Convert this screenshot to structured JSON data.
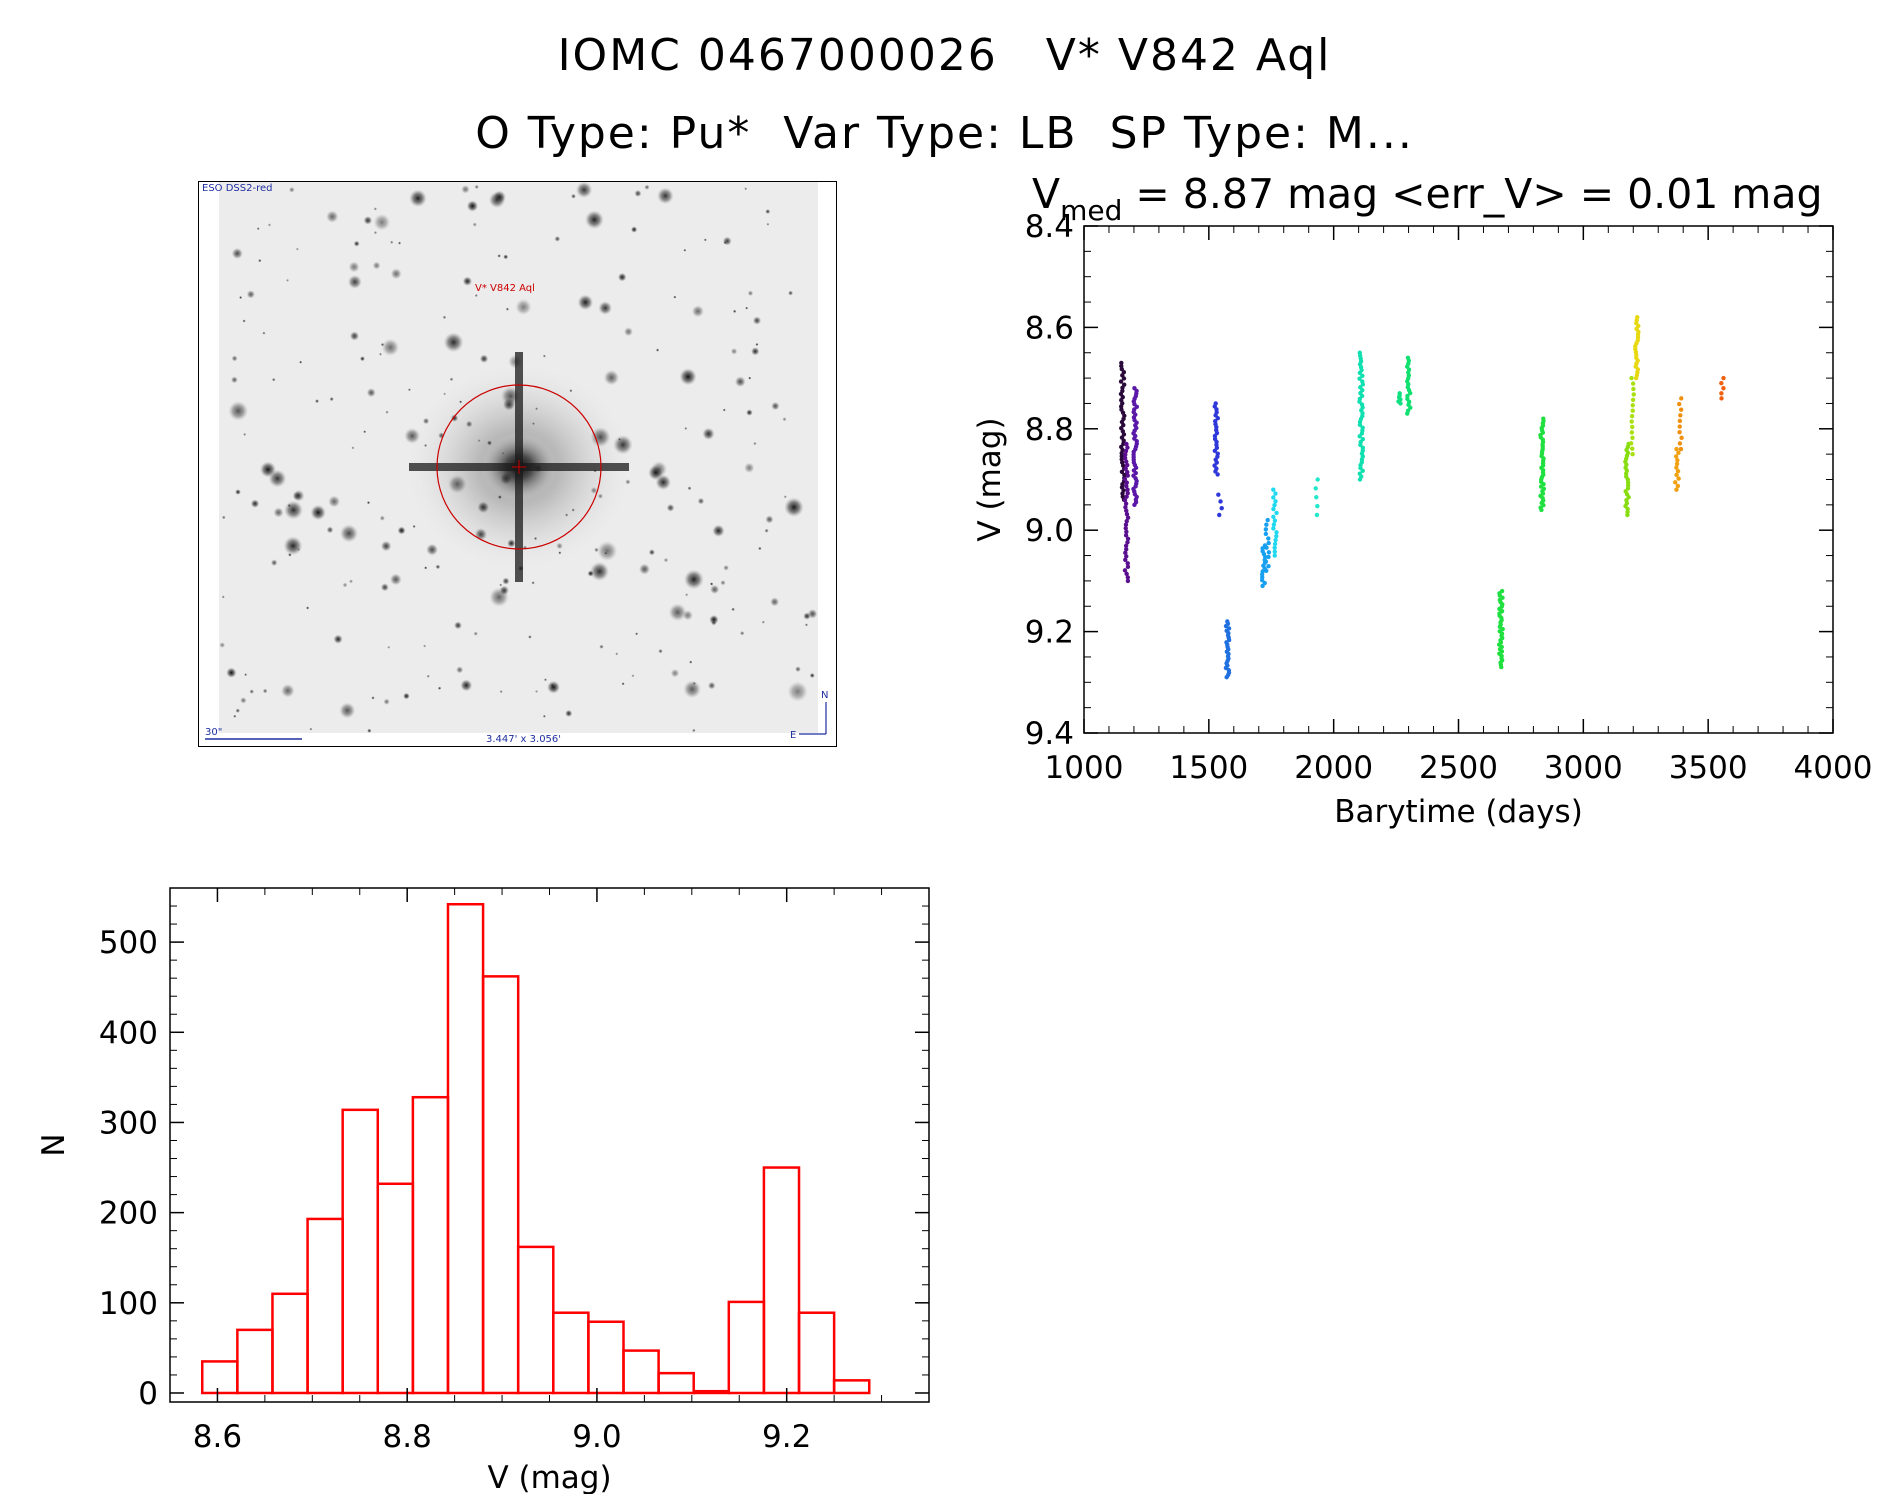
{
  "header": {
    "line1": "IOMC 0467000026   V* V842 Aql",
    "line2": "O Type: Pu*  Var Type: LB  SP Type: M..."
  },
  "finder_chart": {
    "survey_label": "ESO DSS2-red",
    "target_label": "V* V842 Aql",
    "scale_label": "30\"",
    "size_label": "3.447' x 3.056'",
    "north_label": "N",
    "east_label": "E"
  },
  "chart_data": [
    {
      "type": "scatter",
      "title_prefix": "V",
      "title_sub": "med",
      "title_rest": " = 8.87 mag <err_V> = 0.01 mag",
      "xlabel": "Barytime (days)",
      "ylabel": "V (mag)",
      "xlim": [
        1000,
        4000
      ],
      "ylim": [
        9.4,
        8.4
      ],
      "y_inverted": true,
      "xticks": [
        1000,
        1500,
        2000,
        2500,
        3000,
        3500,
        4000
      ],
      "yticks": [
        8.4,
        8.6,
        8.8,
        9.0,
        9.2,
        9.4
      ],
      "grid": false,
      "color_encoding": "rainbow by time",
      "groups": [
        {
          "x": 1155,
          "y_min": 8.67,
          "y_max": 8.94,
          "color": "#2a0a3a",
          "n": 45
        },
        {
          "x": 1170,
          "y_min": 8.83,
          "y_max": 9.1,
          "color": "#5a0f90",
          "n": 40
        },
        {
          "x": 1205,
          "y_min": 8.72,
          "y_max": 8.95,
          "color": "#5a18a8",
          "n": 45
        },
        {
          "x": 1530,
          "y_min": 8.75,
          "y_max": 8.89,
          "color": "#2f38d8",
          "n": 25
        },
        {
          "x": 1545,
          "y_min": 8.93,
          "y_max": 8.97,
          "color": "#2f38d8",
          "n": 4
        },
        {
          "x": 1575,
          "y_min": 9.18,
          "y_max": 9.29,
          "color": "#2070e0",
          "n": 25
        },
        {
          "x": 1720,
          "y_min": 9.03,
          "y_max": 9.11,
          "color": "#18a0f0",
          "n": 15
        },
        {
          "x": 1735,
          "y_min": 8.98,
          "y_max": 9.08,
          "color": "#18a0f0",
          "n": 12
        },
        {
          "x": 1765,
          "y_min": 8.92,
          "y_max": 9.05,
          "color": "#20d8f0",
          "n": 18
        },
        {
          "x": 1935,
          "y_min": 8.9,
          "y_max": 8.97,
          "color": "#20e8c8",
          "n": 5
        },
        {
          "x": 2110,
          "y_min": 8.65,
          "y_max": 8.9,
          "color": "#10e0b0",
          "n": 45
        },
        {
          "x": 2265,
          "y_min": 8.73,
          "y_max": 8.75,
          "color": "#10e080",
          "n": 6
        },
        {
          "x": 2300,
          "y_min": 8.66,
          "y_max": 8.77,
          "color": "#10e070",
          "n": 20
        },
        {
          "x": 2670,
          "y_min": 9.12,
          "y_max": 9.27,
          "color": "#20e040",
          "n": 35
        },
        {
          "x": 2835,
          "y_min": 8.78,
          "y_max": 8.96,
          "color": "#20e040",
          "n": 40
        },
        {
          "x": 3175,
          "y_min": 8.83,
          "y_max": 8.97,
          "color": "#88dd10",
          "n": 25
        },
        {
          "x": 3195,
          "y_min": 8.7,
          "y_max": 8.85,
          "color": "#a8e010",
          "n": 15
        },
        {
          "x": 3215,
          "y_min": 8.58,
          "y_max": 8.7,
          "color": "#e8d810",
          "n": 22
        },
        {
          "x": 3375,
          "y_min": 8.84,
          "y_max": 8.92,
          "color": "#f0a010",
          "n": 12
        },
        {
          "x": 3390,
          "y_min": 8.74,
          "y_max": 8.84,
          "color": "#f09010",
          "n": 10
        },
        {
          "x": 3555,
          "y_min": 8.7,
          "y_max": 8.74,
          "color": "#f06010",
          "n": 5
        }
      ]
    },
    {
      "type": "bar",
      "style": "histogram",
      "xlabel": "V (mag)",
      "ylabel": "N",
      "xlim": [
        8.55,
        9.35
      ],
      "ylim": [
        -10,
        560
      ],
      "xticks": [
        8.6,
        8.8,
        9.0,
        9.2
      ],
      "yticks": [
        0,
        100,
        200,
        300,
        400,
        500
      ],
      "grid": false,
      "bar_color": "#ff0000",
      "bin_edges": [
        8.584,
        8.621,
        8.658,
        8.695,
        8.732,
        8.769,
        8.806,
        8.843,
        8.88,
        8.917,
        8.954,
        8.991,
        9.028,
        9.065,
        9.102,
        9.139,
        9.176,
        9.213,
        9.25,
        9.287
      ],
      "values": [
        35,
        70,
        110,
        193,
        314,
        232,
        328,
        542,
        462,
        162,
        89,
        79,
        47,
        22,
        2,
        101,
        250,
        89,
        14
      ]
    }
  ]
}
